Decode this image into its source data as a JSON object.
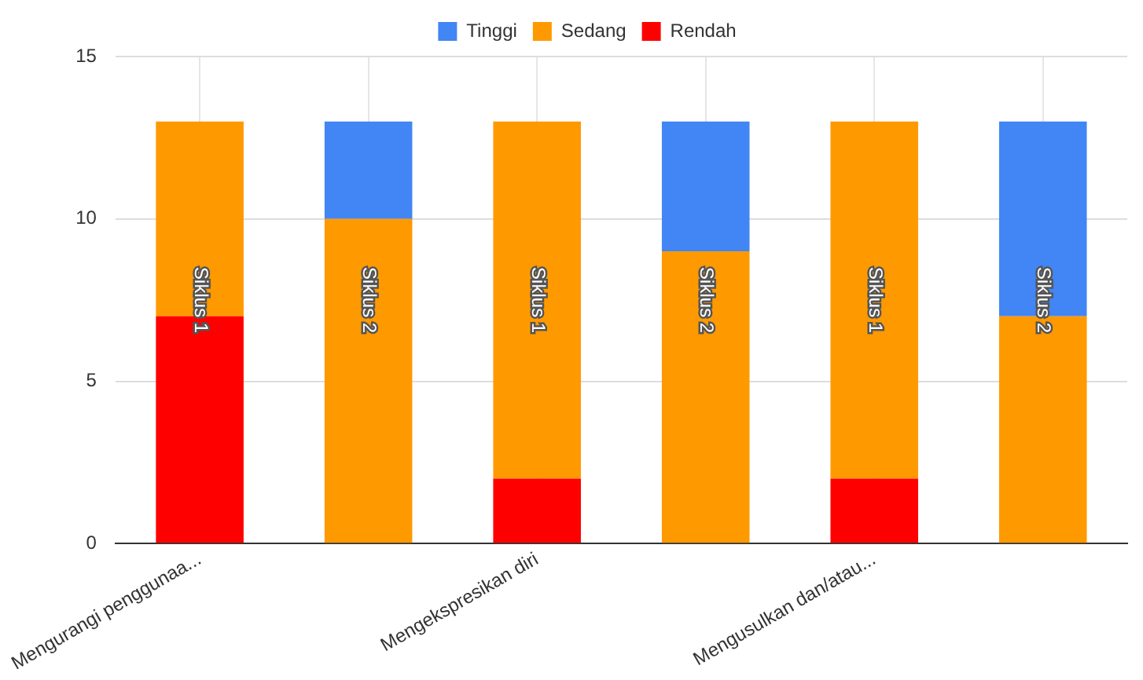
{
  "chart_data": {
    "type": "bar",
    "stacked": true,
    "categories": [
      "Mengurangi penggunaa...",
      null,
      "Mengekspresikan diri",
      null,
      "Mengusulkan dan/atau...",
      null
    ],
    "series": [
      {
        "name": "Rendah",
        "color": "#ff0000",
        "values": [
          7,
          0,
          2,
          0,
          2,
          0
        ]
      },
      {
        "name": "Sedang",
        "color": "#ff9900",
        "values": [
          6,
          10,
          11,
          9,
          11,
          7
        ]
      },
      {
        "name": "Tinggi",
        "color": "#4285f4",
        "values": [
          0,
          3,
          0,
          4,
          0,
          6
        ]
      }
    ],
    "ylim": [
      0,
      15
    ],
    "yticks": [
      0,
      5,
      10,
      15
    ],
    "grid": true,
    "legend": "top",
    "annotations": [
      "Siklus 1",
      "Siklus 2",
      "Siklus 1",
      "Siklus 2",
      "Siklus 1",
      "Siklus 2"
    ]
  }
}
